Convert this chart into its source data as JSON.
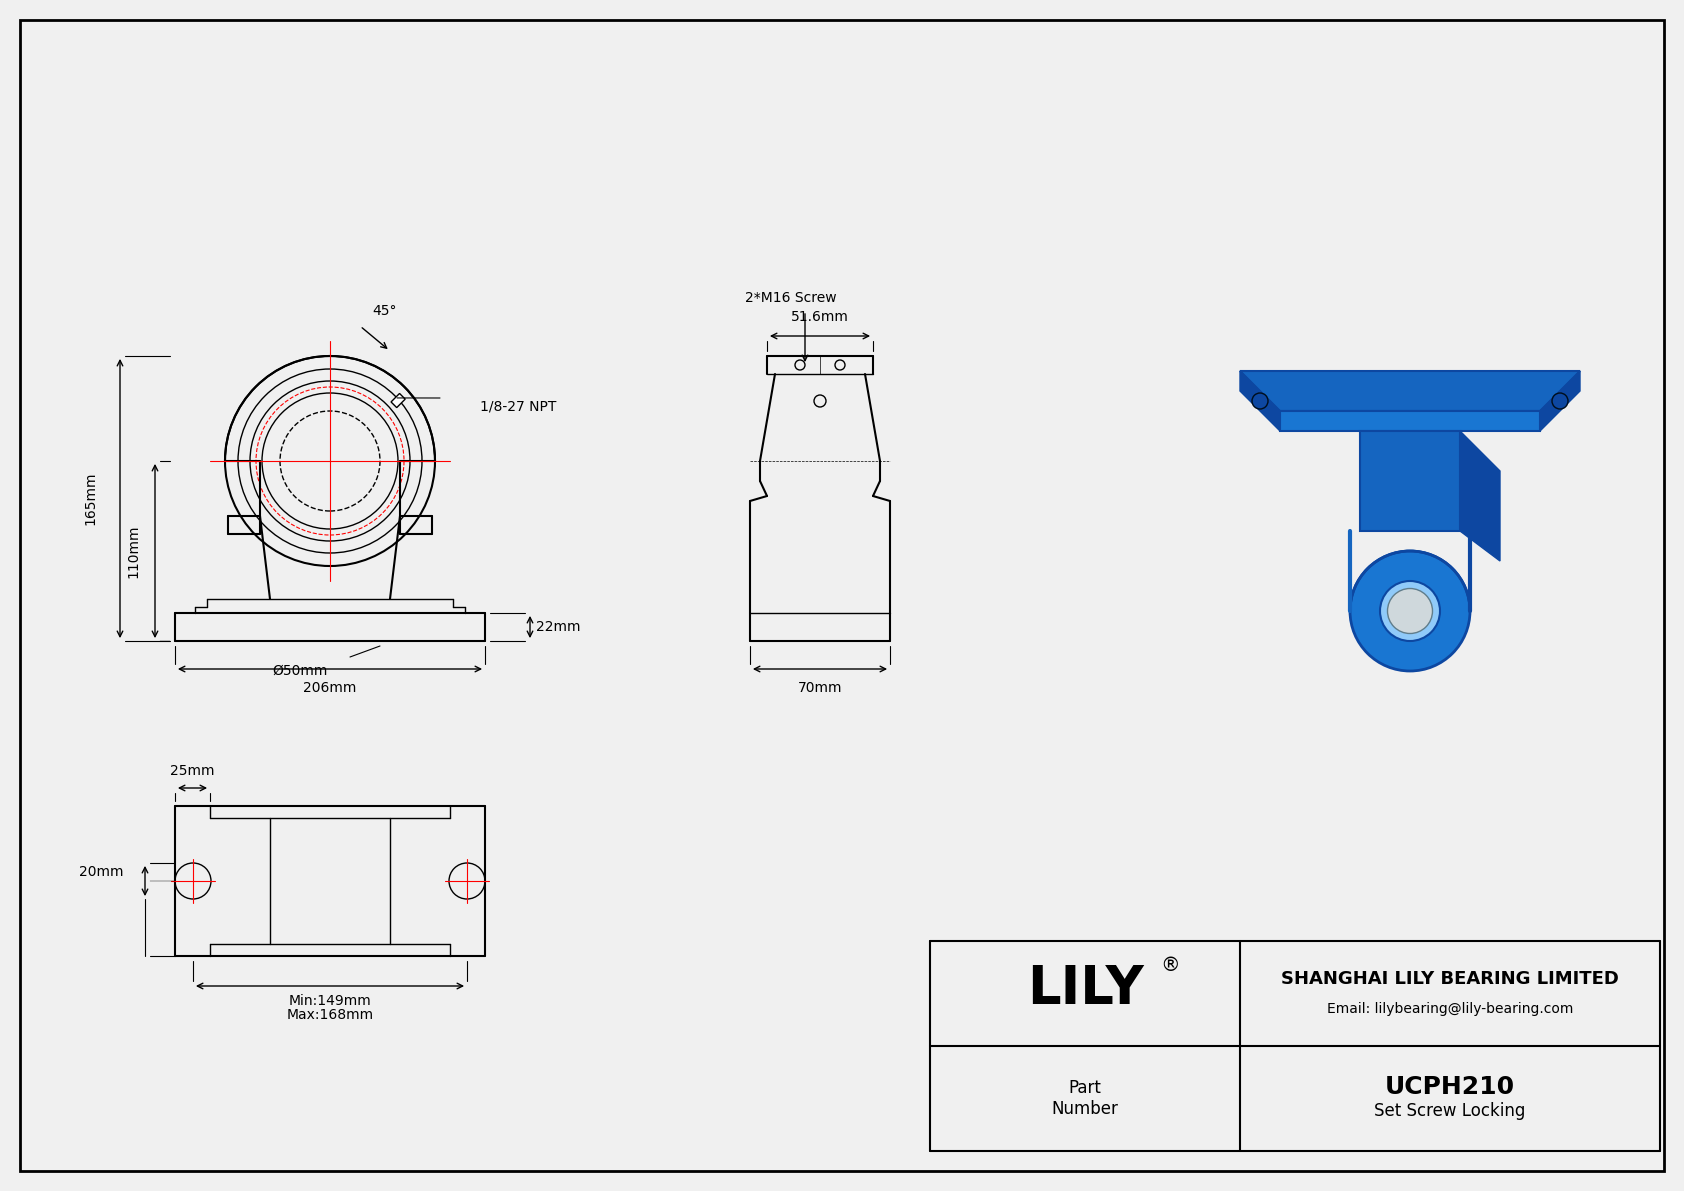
{
  "bg_color": "#f0f0f0",
  "line_color": "#000000",
  "red_color": "#ff0000",
  "title_block": {
    "company": "SHANGHAI LILY BEARING LIMITED",
    "email": "Email: lilybearing@lily-bearing.com",
    "brand": "LILY",
    "part_number_label": "Part\nNumber",
    "part_number": "UCPH210",
    "locking": "Set Screw Locking"
  },
  "dimensions": {
    "total_height": "165mm",
    "base_height": "110mm",
    "bore_dia": "Ø50mm",
    "total_width": "206mm",
    "base_thickness": "22mm",
    "side_width": "70mm",
    "top_width": "51.6mm",
    "bolt_pitch_min": "Min:149mm",
    "bolt_pitch_max": "Max:168mm",
    "bolt_offset": "25mm",
    "edge_dist": "20mm",
    "angle": "45°",
    "npt": "1/8-27 NPT",
    "screw": "2*M16 Screw"
  }
}
